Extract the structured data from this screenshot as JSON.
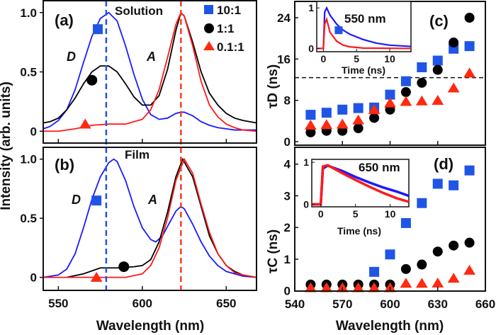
{
  "colors": {
    "ratio_10_1": "#1a1aff",
    "ratio_1_1": "#000000",
    "ratio_0_1_1": "#ff1a1a",
    "marker_blue": "#1f55e6",
    "marker_red": "#ff2a10",
    "dash_blue": "#1f55e6",
    "dash_red": "#ff3a20"
  },
  "legend": {
    "placement": "top-right of panel (a)",
    "items": [
      {
        "label": "10:1",
        "marker": "square",
        "color": "#1f55e6"
      },
      {
        "label": "1:1",
        "marker": "circle",
        "color": "#000000"
      },
      {
        "label": "0.1:1",
        "marker": "triangle",
        "color": "#ff2a10"
      }
    ]
  },
  "shared_labels": {
    "left_ylabel": "Intensity (arb. units)",
    "left_xlabel": "Wavelength (nm)",
    "right_xlabel": "Wavelength (nm)"
  },
  "chart_data": [
    {
      "panel": "(a)",
      "type": "line",
      "annotation": "Solution",
      "peak_labels": [
        "D",
        "A"
      ],
      "xlim": [
        541,
        668
      ],
      "ylim": [
        -0.1,
        1.1
      ],
      "xticks": [
        550,
        600,
        650
      ],
      "yticks": [
        "0",
        "0.5",
        "1.0"
      ],
      "grid": false,
      "dashed_lines_x": [
        578.5,
        623
      ],
      "series": [
        {
          "name": "10:1",
          "color": "#1a1aff",
          "points": [
            [
              541,
              0.02
            ],
            [
              545,
              0.04
            ],
            [
              550,
              0.09
            ],
            [
              555,
              0.18
            ],
            [
              560,
              0.35
            ],
            [
              565,
              0.58
            ],
            [
              570,
              0.8
            ],
            [
              575,
              0.95
            ],
            [
              580,
              1.0
            ],
            [
              585,
              0.93
            ],
            [
              590,
              0.72
            ],
            [
              595,
              0.48
            ],
            [
              600,
              0.27
            ],
            [
              605,
              0.14
            ],
            [
              610,
              0.1
            ],
            [
              615,
              0.11
            ],
            [
              620,
              0.15
            ],
            [
              623,
              0.16
            ],
            [
              625,
              0.16
            ],
            [
              630,
              0.13
            ],
            [
              635,
              0.08
            ],
            [
              640,
              0.05
            ],
            [
              645,
              0.03
            ],
            [
              650,
              0.02
            ],
            [
              655,
              0.01
            ],
            [
              668,
              0.01
            ]
          ],
          "marker": [
            573.5,
            0.86
          ]
        },
        {
          "name": "1:1",
          "color": "#000000",
          "points": [
            [
              541,
              0.07
            ],
            [
              545,
              0.08
            ],
            [
              550,
              0.11
            ],
            [
              555,
              0.18
            ],
            [
              560,
              0.28
            ],
            [
              565,
              0.4
            ],
            [
              570,
              0.5
            ],
            [
              575,
              0.55
            ],
            [
              580,
              0.55
            ],
            [
              585,
              0.5
            ],
            [
              590,
              0.4
            ],
            [
              595,
              0.29
            ],
            [
              600,
              0.22
            ],
            [
              605,
              0.22
            ],
            [
              610,
              0.3
            ],
            [
              615,
              0.52
            ],
            [
              620,
              0.85
            ],
            [
              623,
              1.0
            ],
            [
              625,
              0.97
            ],
            [
              630,
              0.75
            ],
            [
              635,
              0.5
            ],
            [
              640,
              0.32
            ],
            [
              645,
              0.22
            ],
            [
              650,
              0.15
            ],
            [
              655,
              0.11
            ],
            [
              660,
              0.09
            ],
            [
              668,
              0.07
            ]
          ],
          "marker": [
            570,
            0.43
          ]
        },
        {
          "name": "0.1:1",
          "color": "#ff1a1a",
          "points": [
            [
              541,
              0.0
            ],
            [
              550,
              0.0
            ],
            [
              560,
              0.02
            ],
            [
              570,
              0.05
            ],
            [
              580,
              0.06
            ],
            [
              590,
              0.06
            ],
            [
              600,
              0.1
            ],
            [
              605,
              0.18
            ],
            [
              610,
              0.35
            ],
            [
              615,
              0.62
            ],
            [
              620,
              0.9
            ],
            [
              623,
              1.0
            ],
            [
              625,
              0.97
            ],
            [
              630,
              0.72
            ],
            [
              635,
              0.42
            ],
            [
              640,
              0.22
            ],
            [
              645,
              0.12
            ],
            [
              650,
              0.06
            ],
            [
              655,
              0.03
            ],
            [
              660,
              0.01
            ],
            [
              668,
              0.0
            ]
          ],
          "marker": [
            566,
            0.06
          ]
        }
      ]
    },
    {
      "panel": "(b)",
      "type": "line",
      "annotation": "Film",
      "peak_labels": [
        "D",
        "A"
      ],
      "xlim": [
        541,
        668
      ],
      "ylim": [
        -0.11,
        1.1
      ],
      "xticks": [
        550,
        600,
        650
      ],
      "xticklabels": [
        "550",
        "600",
        "650"
      ],
      "yticks": [
        "0",
        "0.5",
        "1.0"
      ],
      "grid": false,
      "dashed_lines_x": [
        578.5,
        623
      ],
      "series": [
        {
          "name": "10:1",
          "color": "#1a1aff",
          "points": [
            [
              541,
              0.0
            ],
            [
              550,
              0.02
            ],
            [
              555,
              0.07
            ],
            [
              560,
              0.2
            ],
            [
              565,
              0.42
            ],
            [
              570,
              0.66
            ],
            [
              575,
              0.85
            ],
            [
              580,
              0.97
            ],
            [
              583,
              1.0
            ],
            [
              585,
              0.98
            ],
            [
              590,
              0.82
            ],
            [
              595,
              0.6
            ],
            [
              600,
              0.42
            ],
            [
              605,
              0.32
            ],
            [
              608,
              0.3
            ],
            [
              612,
              0.35
            ],
            [
              615,
              0.43
            ],
            [
              620,
              0.56
            ],
            [
              623,
              0.6
            ],
            [
              625,
              0.58
            ],
            [
              630,
              0.45
            ],
            [
              635,
              0.3
            ],
            [
              640,
              0.18
            ],
            [
              645,
              0.1
            ],
            [
              650,
              0.05
            ],
            [
              655,
              0.03
            ],
            [
              660,
              0.01
            ],
            [
              668,
              0.0
            ]
          ],
          "marker": [
            572.7,
            0.65
          ]
        },
        {
          "name": "1:1",
          "color": "#000000",
          "points": [
            [
              555,
              0.0
            ],
            [
              565,
              0.03
            ],
            [
              575,
              0.08
            ],
            [
              585,
              0.08
            ],
            [
              595,
              0.09
            ],
            [
              600,
              0.1
            ],
            [
              605,
              0.15
            ],
            [
              610,
              0.3
            ],
            [
              615,
              0.55
            ],
            [
              620,
              0.85
            ],
            [
              624,
              1.0
            ],
            [
              630,
              0.85
            ],
            [
              635,
              0.6
            ],
            [
              640,
              0.35
            ],
            [
              645,
              0.2
            ],
            [
              650,
              0.1
            ],
            [
              655,
              0.05
            ],
            [
              660,
              0.02
            ],
            [
              668,
              0.0
            ]
          ],
          "marker": [
            589,
            0.09
          ]
        },
        {
          "name": "0.1:1",
          "color": "#ff1a1a",
          "points": [
            [
              541,
              0.0
            ],
            [
              590,
              0.0
            ],
            [
              600,
              0.03
            ],
            [
              605,
              0.1
            ],
            [
              610,
              0.25
            ],
            [
              615,
              0.5
            ],
            [
              620,
              0.82
            ],
            [
              625,
              1.0
            ],
            [
              630,
              0.88
            ],
            [
              635,
              0.62
            ],
            [
              640,
              0.38
            ],
            [
              645,
              0.2
            ],
            [
              650,
              0.1
            ],
            [
              655,
              0.04
            ],
            [
              660,
              0.02
            ],
            [
              668,
              0.0
            ]
          ],
          "marker": [
            572.7,
            0.0
          ]
        }
      ]
    },
    {
      "panel": "(c)",
      "type": "scatter",
      "ylabel": "τD (ns)",
      "ylabel_main": "τ",
      "ylabel_sub": "D",
      "ylabel_unit": "(ns)",
      "xlim": [
        540,
        660
      ],
      "ylim": [
        0,
        27
      ],
      "xticks": [
        540,
        570,
        600,
        630,
        660
      ],
      "yticks": [
        "0",
        "8",
        "16",
        "24"
      ],
      "grid": false,
      "hline": 12.4,
      "x": [
        550,
        560,
        570,
        580,
        590,
        600,
        610,
        620,
        630,
        640,
        650
      ],
      "series": [
        {
          "name": "10:1",
          "marker": "square",
          "values": [
            5.2,
            5.6,
            6.2,
            6.5,
            6.6,
            9.1,
            11.7,
            14.4,
            15.7,
            18.0,
            18.5
          ]
        },
        {
          "name": "1:1",
          "marker": "circle",
          "values": [
            1.8,
            2.1,
            2.1,
            2.6,
            4.6,
            6.2,
            9.6,
            11.4,
            13.9,
            19.2,
            24.0
          ]
        },
        {
          "name": "0.1:1",
          "marker": "triangle",
          "values": [
            3.2,
            3.3,
            3.4,
            4.2,
            6.2,
            7.5,
            7.8,
            7.9,
            8.0,
            10.4,
            13.3
          ]
        }
      ],
      "inset": {
        "type": "line",
        "annotation": "550 nm",
        "xlabel": "Time (ns)",
        "xlim": [
          -1,
          13.2
        ],
        "ylim": [
          -0.08,
          1.16
        ],
        "xticks": [
          "0",
          "5",
          "10"
        ],
        "yticks": [
          "0",
          "1"
        ],
        "marker": [
          2.3,
          0.45
        ],
        "series": [
          {
            "color": "#1a1aff",
            "points": [
              [
                -1,
                0
              ],
              [
                0,
                0
              ],
              [
                0.2,
                0.9
              ],
              [
                0.5,
                1.0
              ],
              [
                1,
                0.82
              ],
              [
                2,
                0.6
              ],
              [
                3,
                0.45
              ],
              [
                4,
                0.35
              ],
              [
                6,
                0.22
              ],
              [
                8,
                0.13
              ],
              [
                10,
                0.08
              ],
              [
                13.2,
                0.05
              ]
            ]
          },
          {
            "color": "#ff1a1a",
            "points": [
              [
                -1,
                0
              ],
              [
                0,
                0
              ],
              [
                0.2,
                0.6
              ],
              [
                0.5,
                0.72
              ],
              [
                1,
                0.4
              ],
              [
                2,
                0.18
              ],
              [
                3,
                0.08
              ],
              [
                4,
                0.04
              ],
              [
                6,
                0.01
              ],
              [
                13.2,
                0.0
              ]
            ]
          }
        ]
      }
    },
    {
      "panel": "(d)",
      "type": "scatter",
      "ylabel": "τC (ns)",
      "ylabel_main": "τ",
      "ylabel_sub": "C",
      "ylabel_unit": "(ns)",
      "xlim": [
        540,
        660
      ],
      "ylim": [
        0,
        4.4
      ],
      "xticks": [
        540,
        570,
        600,
        630,
        660
      ],
      "xticklabels": [
        "540",
        "570",
        "600",
        "630",
        "660"
      ],
      "yticks": [
        "0",
        "1",
        "2",
        "3",
        "4"
      ],
      "grid": false,
      "x": [
        550,
        560,
        570,
        580,
        590,
        600,
        610,
        620,
        630,
        640,
        650
      ],
      "series": [
        {
          "name": "10:1",
          "marker": "square",
          "values": [
            null,
            null,
            null,
            null,
            0.6,
            1.15,
            2.14,
            2.77,
            3.38,
            3.33,
            3.8
          ]
        },
        {
          "name": "1:1",
          "marker": "circle",
          "values": [
            0.2,
            0.2,
            0.2,
            0.2,
            0.2,
            0.2,
            0.69,
            0.83,
            1.24,
            1.43,
            1.52
          ]
        },
        {
          "name": "0.1:1",
          "marker": "triangle",
          "values": [
            0.1,
            0.1,
            0.1,
            0.1,
            0.1,
            0.1,
            0.24,
            0.24,
            0.25,
            0.4,
            0.65
          ]
        }
      ],
      "inset": {
        "type": "line",
        "annotation": "650 nm",
        "xlabel": "Time (ns)",
        "xlim": [
          -1.3,
          12.7
        ],
        "ylim": [
          -0.06,
          1.07
        ],
        "xticks": [
          "0",
          "5",
          "10"
        ],
        "yticks": [
          "0",
          "1"
        ],
        "series": [
          {
            "color": "#1a1aff",
            "points": [
              [
                -1.3,
                0
              ],
              [
                0,
                0
              ],
              [
                0.3,
                0.85
              ],
              [
                1,
                0.92
              ],
              [
                3,
                0.8
              ],
              [
                5,
                0.65
              ],
              [
                7,
                0.52
              ],
              [
                9,
                0.4
              ],
              [
                11,
                0.3
              ],
              [
                12.7,
                0.2
              ]
            ]
          },
          {
            "color": "#ff1a1a",
            "points": [
              [
                -1.3,
                0
              ],
              [
                0,
                0
              ],
              [
                0.3,
                0.9
              ],
              [
                1,
                0.93
              ],
              [
                3,
                0.75
              ],
              [
                5,
                0.58
              ],
              [
                7,
                0.42
              ],
              [
                9,
                0.27
              ],
              [
                11,
                0.14
              ],
              [
                12.7,
                0.06
              ]
            ]
          }
        ]
      }
    }
  ]
}
